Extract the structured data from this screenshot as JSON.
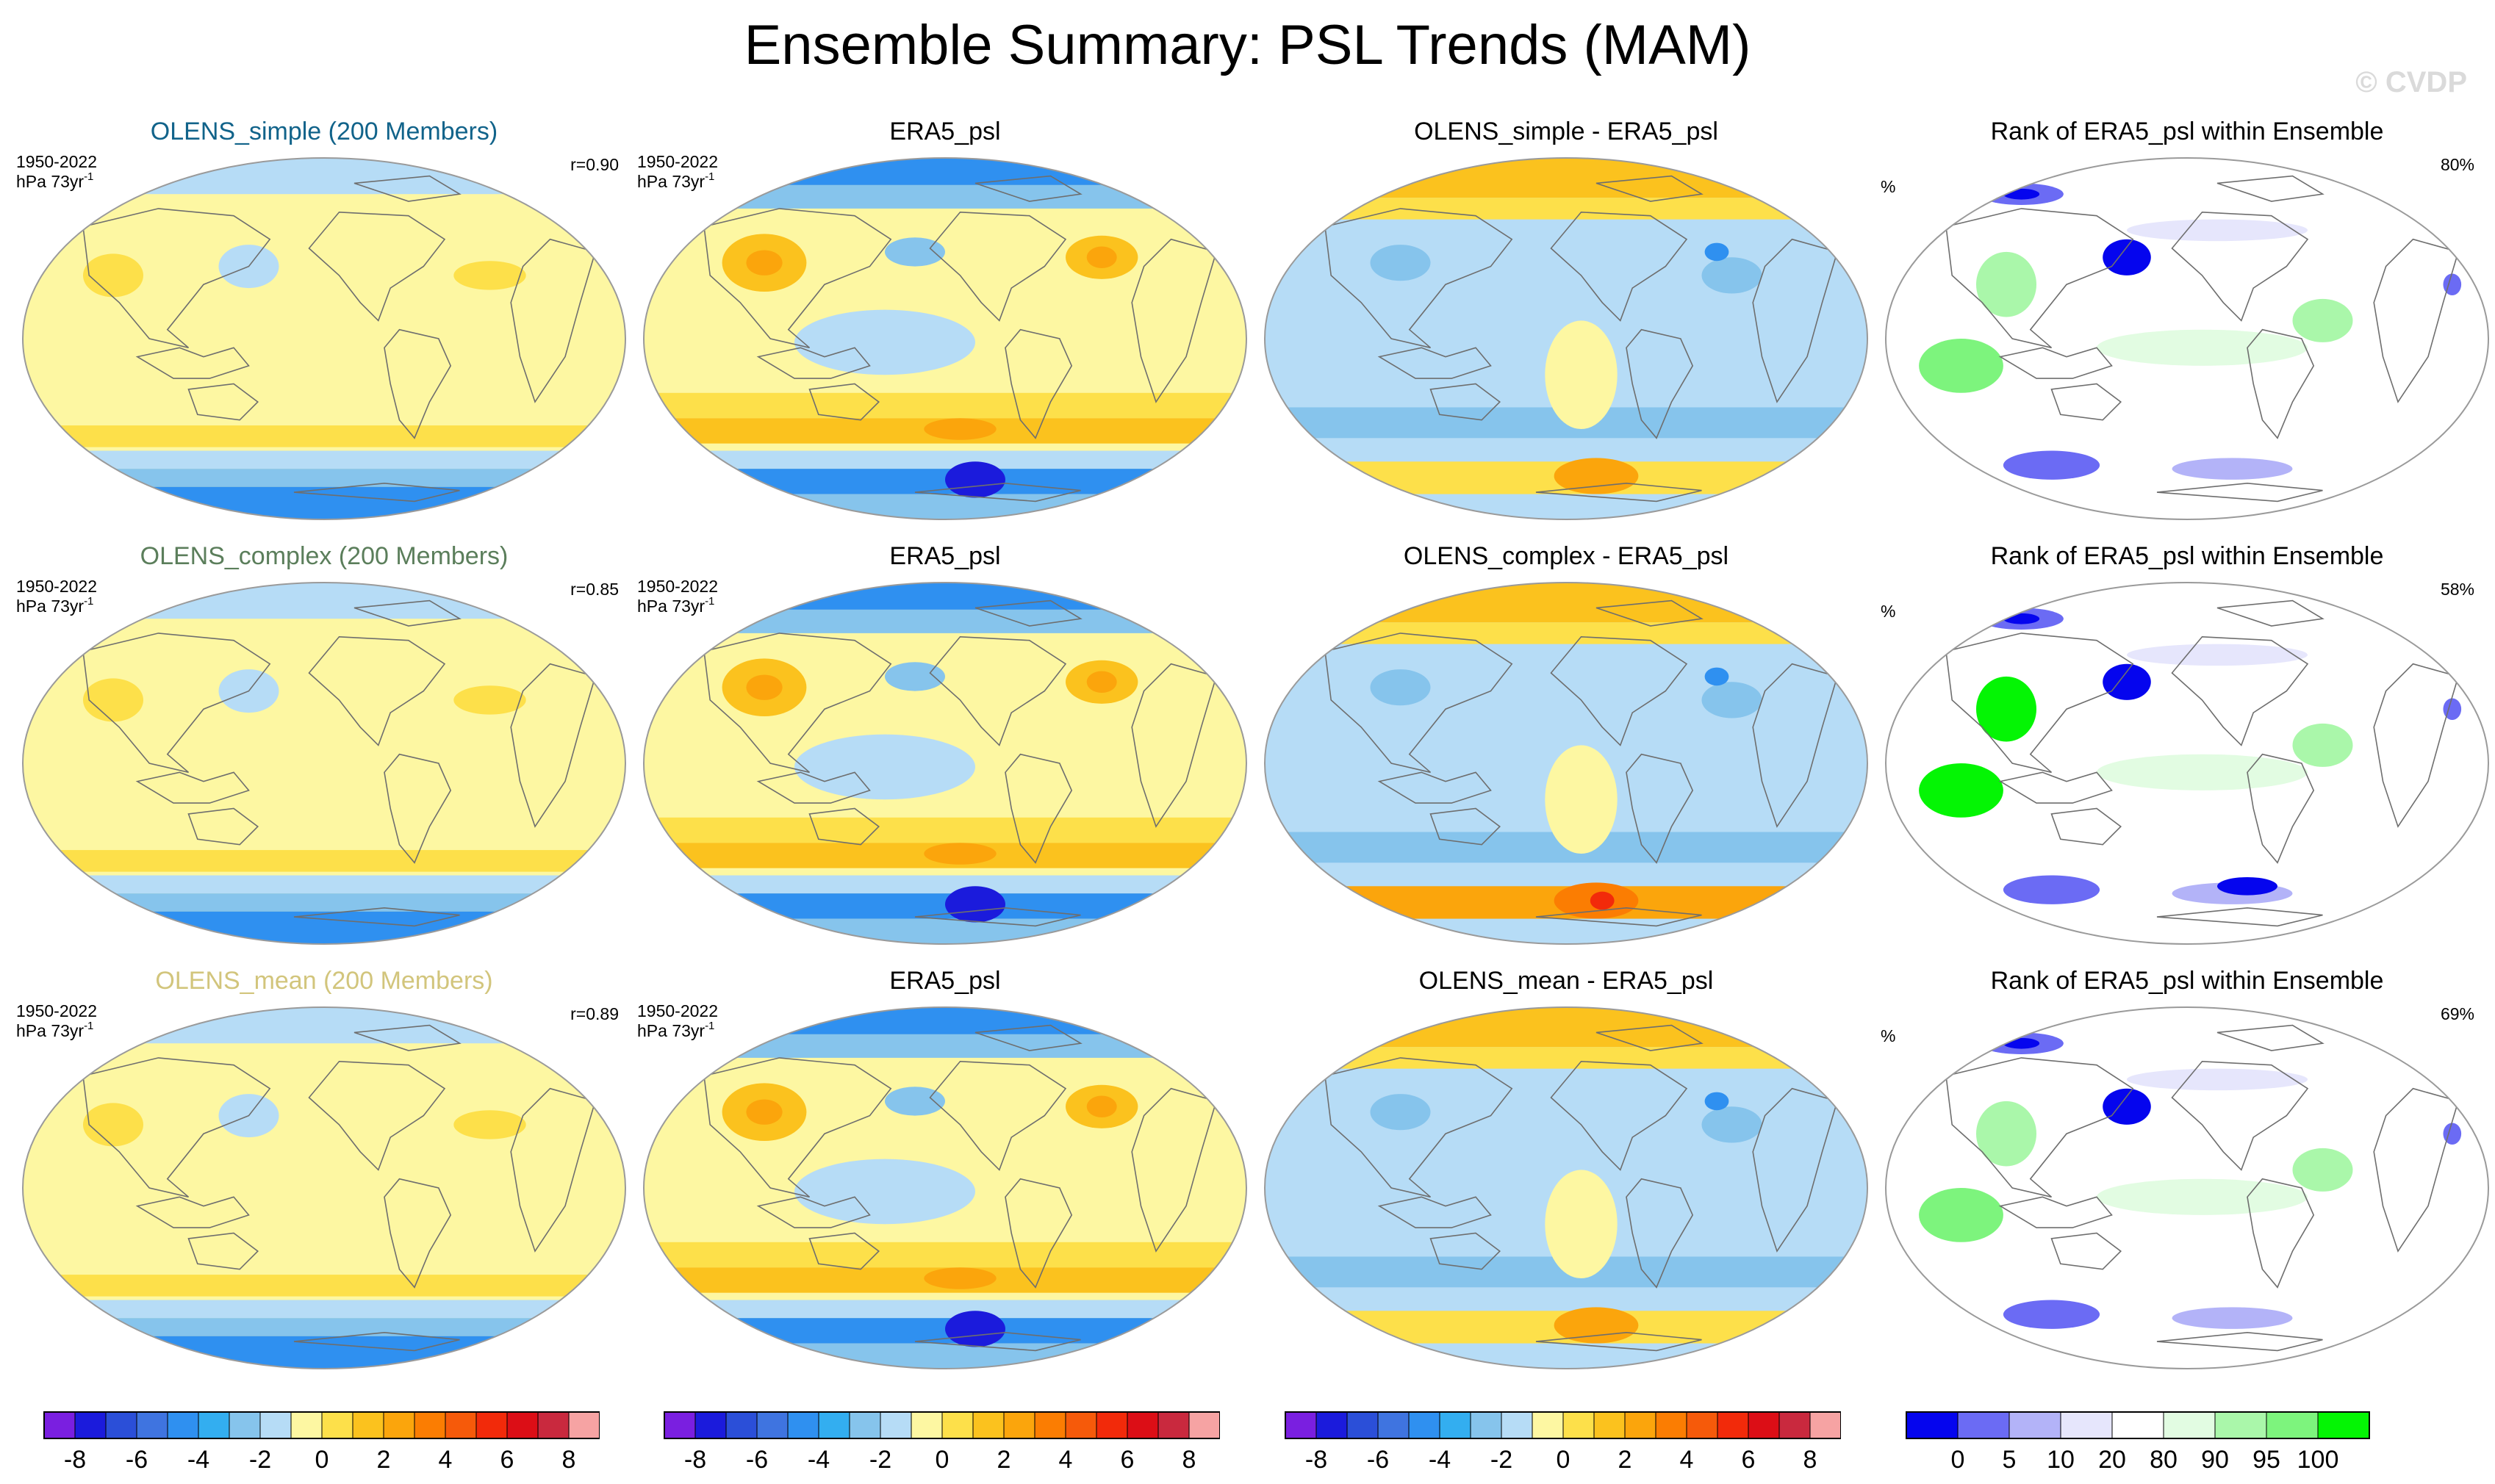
{
  "title": "Ensemble Summary: PSL Trends (MAM)",
  "watermark": "© CVDP",
  "period": "1950-2022",
  "units_base": "hPa 73yr",
  "units_exp": "-1",
  "pct_symbol": "%",
  "chart_data": [
    {
      "type": "heatmap",
      "title": "Ensemble Summary: PSL Trends (MAM)",
      "rows": [
        {
          "ensemble": {
            "title": "OLENS_simple (200 Members)",
            "title_color": "#11638a",
            "pattern_corr": "r=0.90"
          },
          "observed": {
            "title": "ERA5_psl"
          },
          "difference": {
            "title": "OLENS_simple - ERA5_psl"
          },
          "rank": {
            "title": "Rank of ERA5_psl within Ensemble",
            "percent": "80%"
          }
        },
        {
          "ensemble": {
            "title": "OLENS_complex (200 Members)",
            "title_color": "#5b7e5b",
            "pattern_corr": "r=0.85"
          },
          "observed": {
            "title": "ERA5_psl"
          },
          "difference": {
            "title": "OLENS_complex - ERA5_psl"
          },
          "rank": {
            "title": "Rank of ERA5_psl within Ensemble",
            "percent": "58%"
          }
        },
        {
          "ensemble": {
            "title": "OLENS_mean (200 Members)",
            "title_color": "#d2c57c",
            "pattern_corr": "r=0.89"
          },
          "observed": {
            "title": "ERA5_psl"
          },
          "difference": {
            "title": "OLENS_mean - ERA5_psl"
          },
          "rank": {
            "title": "Rank of ERA5_psl within Ensemble",
            "percent": "69%"
          }
        }
      ],
      "psl_colorbar": {
        "units": "hPa 73yr-1",
        "colors": [
          "#7a1fe0",
          "#1b1bdc",
          "#2b4fd8",
          "#3f74e0",
          "#2f90f0",
          "#33aef0",
          "#86c4ec",
          "#b6dcf6",
          "#fdf7a2",
          "#fde04a",
          "#fbc21e",
          "#fba50c",
          "#fb7d02",
          "#f65a0a",
          "#f22a0a",
          "#dc0e16",
          "#c9293e",
          "#f6a3a3"
        ],
        "ticks": [
          "-8",
          "-6",
          "-4",
          "-2",
          "0",
          "2",
          "4",
          "6",
          "8"
        ],
        "range": [
          -9,
          9
        ]
      },
      "rank_colorbar": {
        "units": "%",
        "colors": [
          "#0505ee",
          "#6b6bf4",
          "#b3b3f8",
          "#e6e6fc",
          "#ffffff",
          "#e2fce2",
          "#aaf7aa",
          "#7df47d",
          "#04f504"
        ],
        "ticks": [
          "0",
          "5",
          "10",
          "20",
          "80",
          "90",
          "95",
          "100"
        ]
      },
      "map_colors": {
        "psl": {
          "neg_strong": "#1b1bdc",
          "neg_mid": "#2f90f0",
          "neg_weak": "#86c4ec",
          "neg_light": "#b6dcf6",
          "pos_light": "#fdf7a2",
          "pos_weak": "#fde04a",
          "pos_mid": "#fbc21e",
          "pos_strong": "#fba50c",
          "pos_hot": "#fb7d02",
          "pos_max": "#f22a0a"
        },
        "land_outline": "#6e6e6e",
        "map_border": "#9a9a9a"
      }
    }
  ]
}
